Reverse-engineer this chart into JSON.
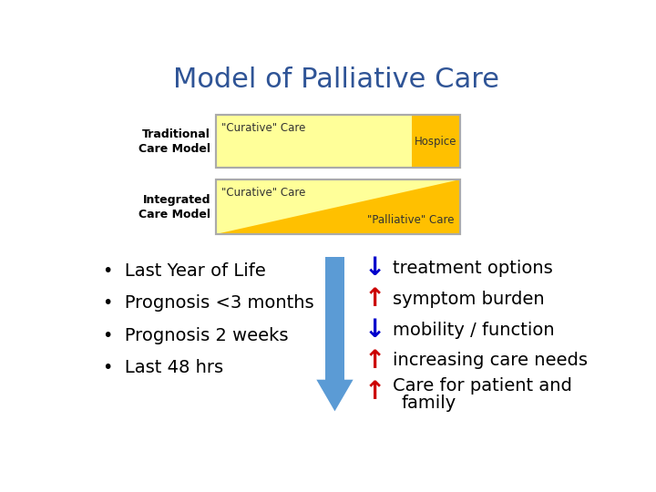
{
  "title": "Model of Palliative Care",
  "title_color": "#2F5496",
  "title_fontsize": 22,
  "background_color": "#ffffff",
  "light_yellow": "#FFFF99",
  "gold_yellow": "#FFC000",
  "label_color": "#000000",
  "box_edge_color": "#AAAAAA",
  "label_traditional": "Traditional\nCare Model",
  "label_integrated": "Integrated\nCare Model",
  "curative_text": "\"Curative\" Care",
  "hospice_text": "Hospice",
  "palliative_text": "\"Palliative\" Care",
  "bullets": [
    "Last Year of Life",
    "Prognosis <3 months",
    "Prognosis 2 weeks",
    "Last 48 hrs"
  ],
  "arrow_color": "#5B9BD5",
  "right_items": [
    {
      "arrow": "down",
      "color": "#0000CC",
      "text": "treatment options"
    },
    {
      "arrow": "up",
      "color": "#CC0000",
      "text": "symptom burden"
    },
    {
      "arrow": "down",
      "color": "#0000CC",
      "text": "mobility / function"
    },
    {
      "arrow": "up",
      "color": "#CC0000",
      "text": "increasing care needs"
    },
    {
      "arrow": "up",
      "color": "#CC0000",
      "text": "Care for patient and\n  family"
    }
  ]
}
